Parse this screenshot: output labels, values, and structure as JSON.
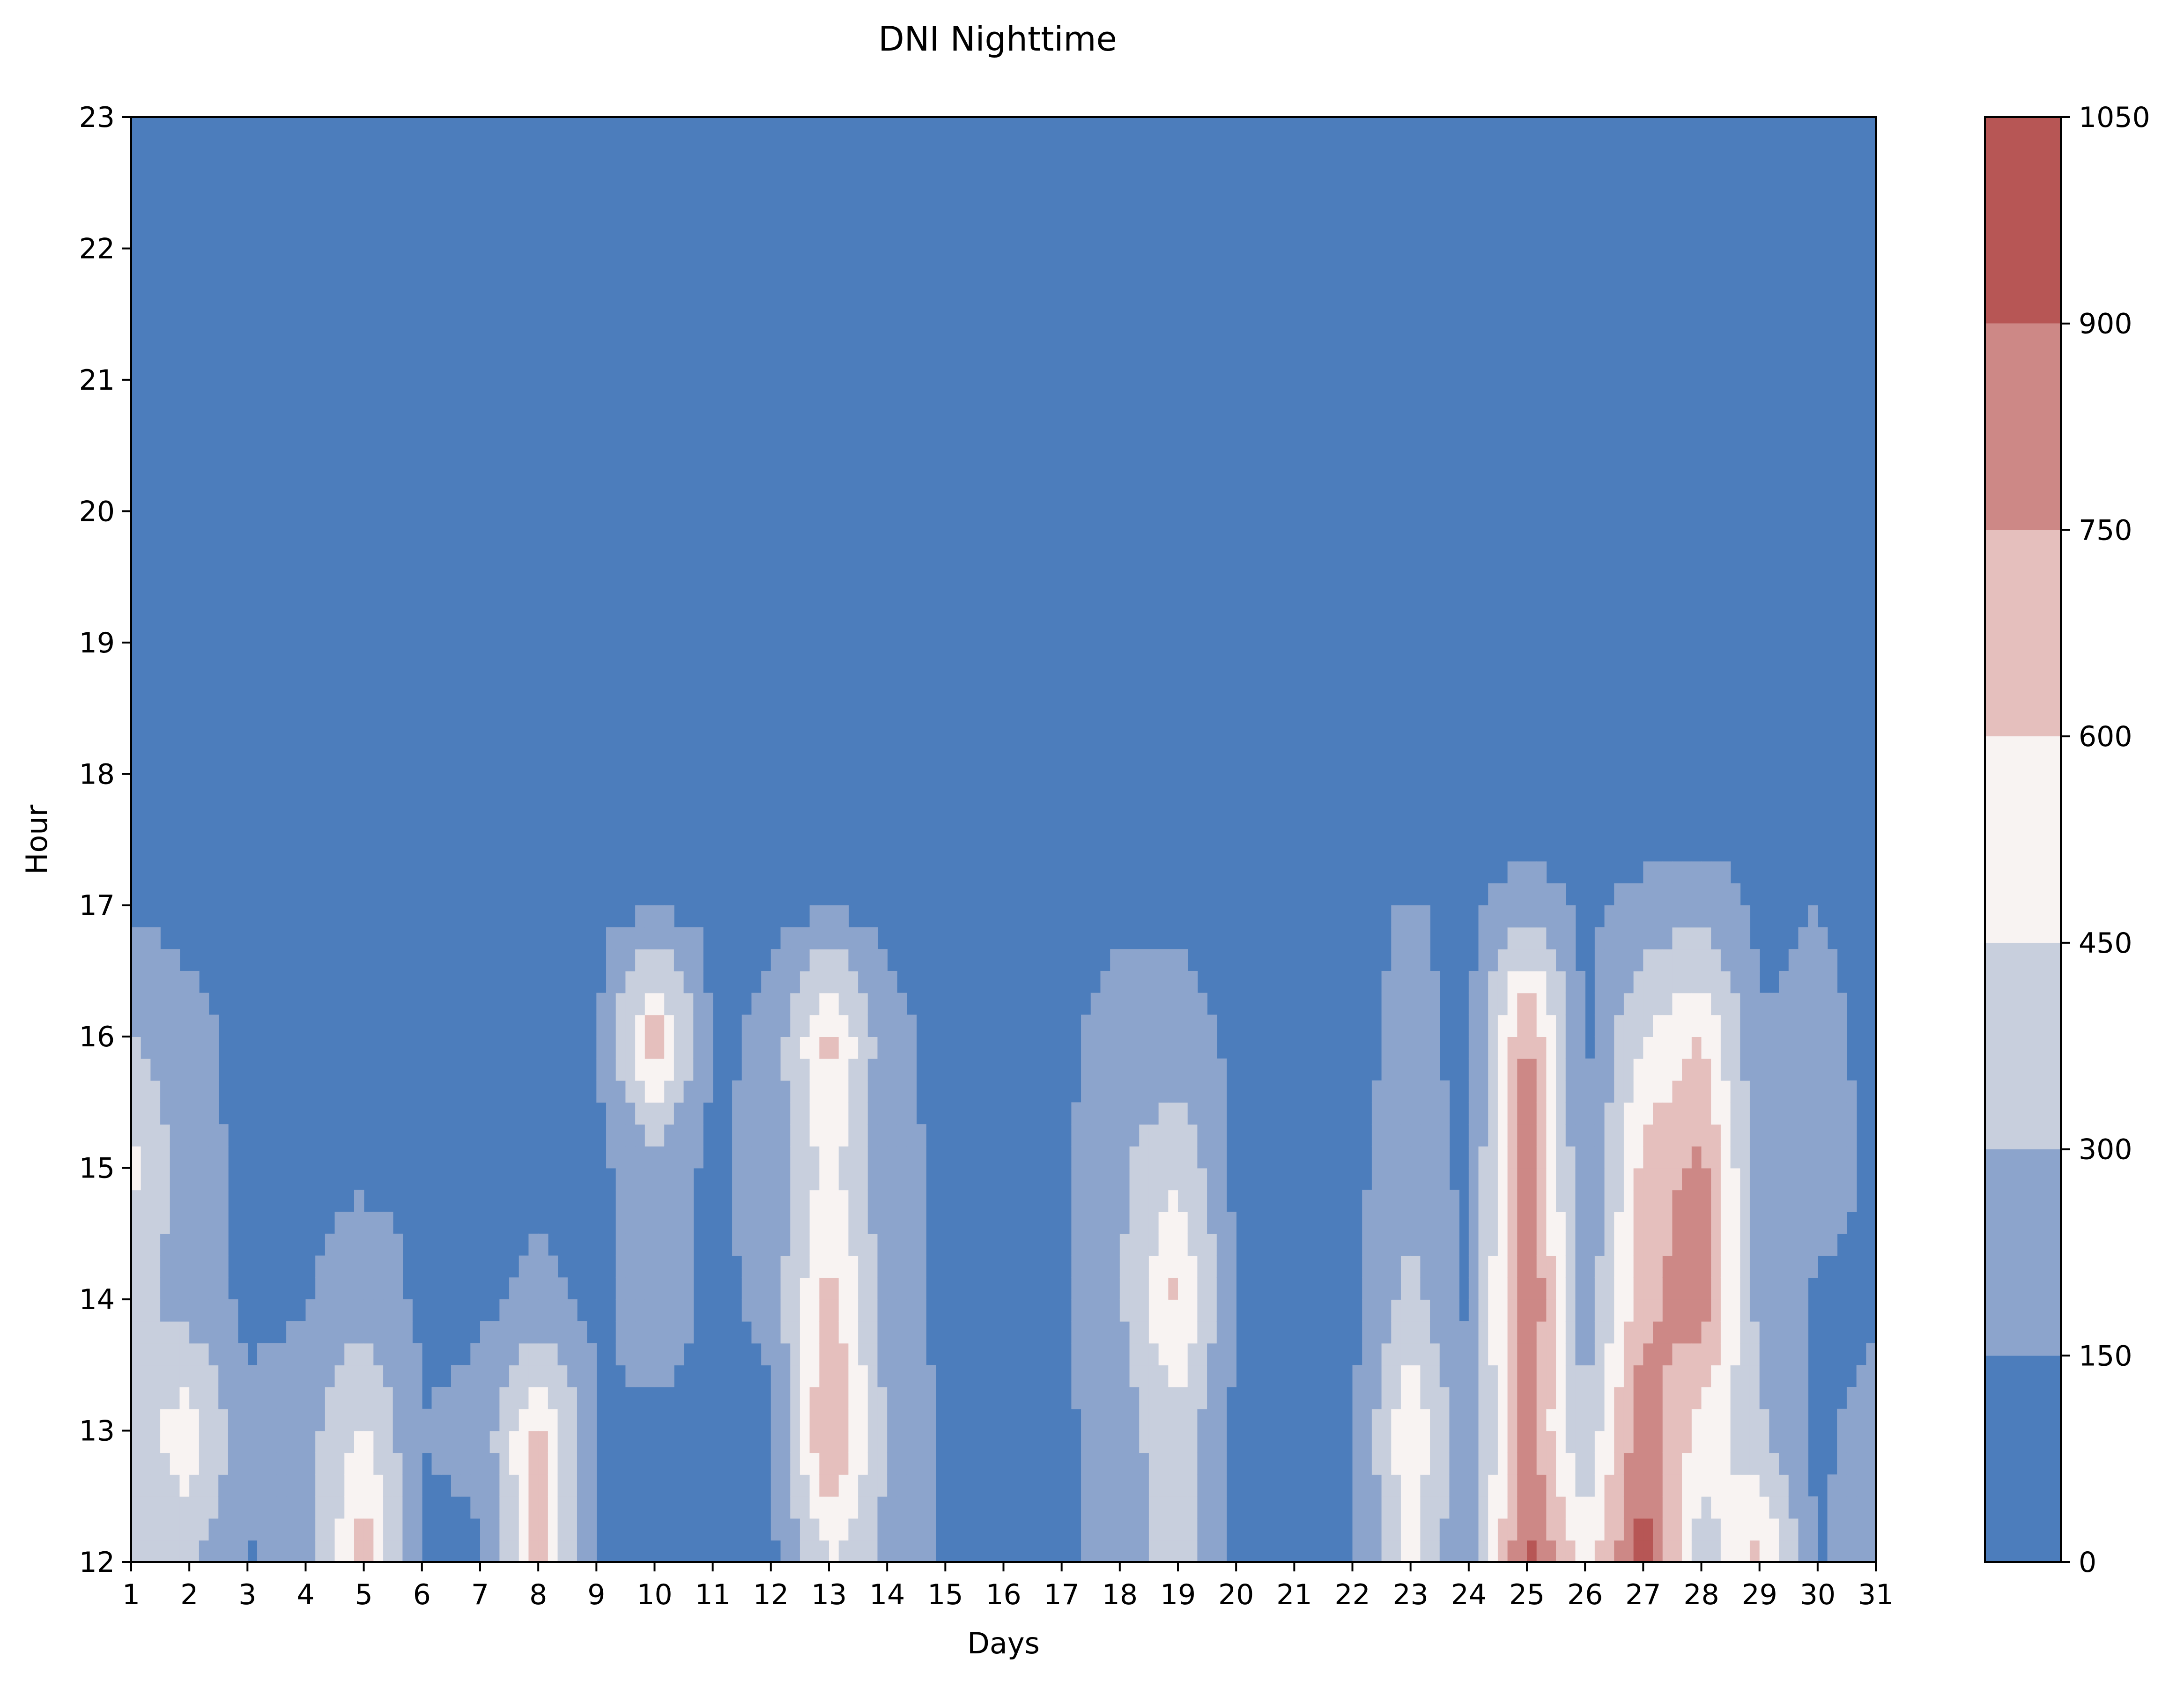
{
  "chart_data": {
    "type": "heatmap",
    "style": "filled-contour",
    "title": "DNI Nighttime",
    "xlabel": "Days",
    "ylabel": "Hour",
    "x": [
      1,
      2,
      3,
      4,
      5,
      6,
      7,
      8,
      9,
      10,
      11,
      12,
      13,
      14,
      15,
      16,
      17,
      18,
      19,
      20,
      21,
      22,
      23,
      24,
      25,
      26,
      27,
      28,
      29,
      30,
      31
    ],
    "y": [
      12,
      13,
      14,
      15,
      16,
      17,
      18,
      19,
      20,
      21,
      22,
      23
    ],
    "xlim": [
      1,
      31
    ],
    "ylim": [
      12,
      23
    ],
    "x_ticks": [
      "1",
      "2",
      "3",
      "4",
      "5",
      "6",
      "7",
      "8",
      "9",
      "10",
      "11",
      "12",
      "13",
      "14",
      "15",
      "16",
      "17",
      "18",
      "19",
      "20",
      "21",
      "22",
      "23",
      "24",
      "25",
      "26",
      "27",
      "28",
      "29",
      "30",
      "31"
    ],
    "y_ticks": [
      "12",
      "13",
      "14",
      "15",
      "16",
      "17",
      "18",
      "19",
      "20",
      "21",
      "22",
      "23"
    ],
    "colorbar": {
      "levels": [
        0,
        150,
        300,
        450,
        600,
        750,
        900,
        1050
      ],
      "tick_labels": [
        "0",
        "150",
        "300",
        "450",
        "600",
        "750",
        "900",
        "1050"
      ],
      "colors": [
        "#4c7dbc",
        "#8ca4cc",
        "#c8cfdd",
        "#f8f3f2",
        "#e5bfbd",
        "#cd8886",
        "#b75655"
      ]
    },
    "values_by_hour": [
      {
        "hour": 12,
        "values": [
          350,
          320,
          140,
          180,
          700,
          120,
          120,
          650,
          120,
          120,
          120,
          120,
          450,
          260,
          120,
          120,
          120,
          230,
          380,
          120,
          120,
          120,
          500,
          120,
          980,
          500,
          980,
          350,
          650,
          120,
          300
        ]
      },
      {
        "hour": 13,
        "values": [
          350,
          560,
          180,
          250,
          480,
          150,
          200,
          650,
          150,
          120,
          120,
          120,
          800,
          280,
          120,
          120,
          120,
          230,
          400,
          120,
          120,
          120,
          580,
          180,
          800,
          300,
          880,
          540,
          330,
          120,
          200
        ]
      },
      {
        "hour": 14,
        "values": [
          350,
          220,
          120,
          130,
          250,
          120,
          120,
          180,
          120,
          220,
          120,
          180,
          680,
          200,
          120,
          120,
          120,
          280,
          650,
          120,
          120,
          120,
          360,
          120,
          950,
          200,
          700,
          850,
          240,
          120,
          120
        ]
      },
      {
        "hour": 15,
        "values": [
          500,
          200,
          120,
          120,
          120,
          120,
          120,
          120,
          120,
          200,
          120,
          220,
          500,
          200,
          120,
          120,
          120,
          280,
          420,
          120,
          120,
          120,
          220,
          120,
          850,
          120,
          650,
          800,
          200,
          220,
          120
        ]
      },
      {
        "hour": 16,
        "values": [
          320,
          180,
          120,
          120,
          120,
          120,
          120,
          120,
          120,
          700,
          120,
          180,
          680,
          180,
          120,
          120,
          120,
          200,
          200,
          120,
          120,
          120,
          180,
          120,
          800,
          120,
          450,
          600,
          160,
          180,
          120
        ]
      },
      {
        "hour": 17,
        "values": [
          120,
          120,
          120,
          120,
          120,
          120,
          120,
          120,
          120,
          120,
          120,
          120,
          120,
          120,
          120,
          120,
          120,
          120,
          120,
          120,
          120,
          120,
          160,
          120,
          250,
          120,
          200,
          260,
          120,
          150,
          120
        ]
      },
      {
        "hour": 18,
        "values": [
          0,
          0,
          0,
          0,
          0,
          0,
          0,
          0,
          0,
          0,
          0,
          0,
          0,
          0,
          0,
          0,
          0,
          0,
          0,
          0,
          0,
          0,
          0,
          0,
          0,
          0,
          0,
          0,
          0,
          0,
          0
        ]
      },
      {
        "hour": 19,
        "values": [
          0,
          0,
          0,
          0,
          0,
          0,
          0,
          0,
          0,
          0,
          0,
          0,
          0,
          0,
          0,
          0,
          0,
          0,
          0,
          0,
          0,
          0,
          0,
          0,
          0,
          0,
          0,
          0,
          0,
          0,
          0
        ]
      },
      {
        "hour": 20,
        "values": [
          0,
          0,
          0,
          0,
          0,
          0,
          0,
          0,
          0,
          0,
          0,
          0,
          0,
          0,
          0,
          0,
          0,
          0,
          0,
          0,
          0,
          0,
          0,
          0,
          0,
          0,
          0,
          0,
          0,
          0,
          0
        ]
      },
      {
        "hour": 21,
        "values": [
          0,
          0,
          0,
          0,
          0,
          0,
          0,
          0,
          0,
          0,
          0,
          0,
          0,
          0,
          0,
          0,
          0,
          0,
          0,
          0,
          0,
          0,
          0,
          0,
          0,
          0,
          0,
          0,
          0,
          0,
          0
        ]
      },
      {
        "hour": 22,
        "values": [
          0,
          0,
          0,
          0,
          0,
          0,
          0,
          0,
          0,
          0,
          0,
          0,
          0,
          0,
          0,
          0,
          0,
          0,
          0,
          0,
          0,
          0,
          0,
          0,
          0,
          0,
          0,
          0,
          0,
          0,
          0
        ]
      },
      {
        "hour": 23,
        "values": [
          0,
          0,
          0,
          0,
          0,
          0,
          0,
          0,
          0,
          0,
          0,
          0,
          0,
          0,
          0,
          0,
          0,
          0,
          0,
          0,
          0,
          0,
          0,
          0,
          0,
          0,
          0,
          0,
          0,
          0,
          0
        ]
      }
    ]
  }
}
